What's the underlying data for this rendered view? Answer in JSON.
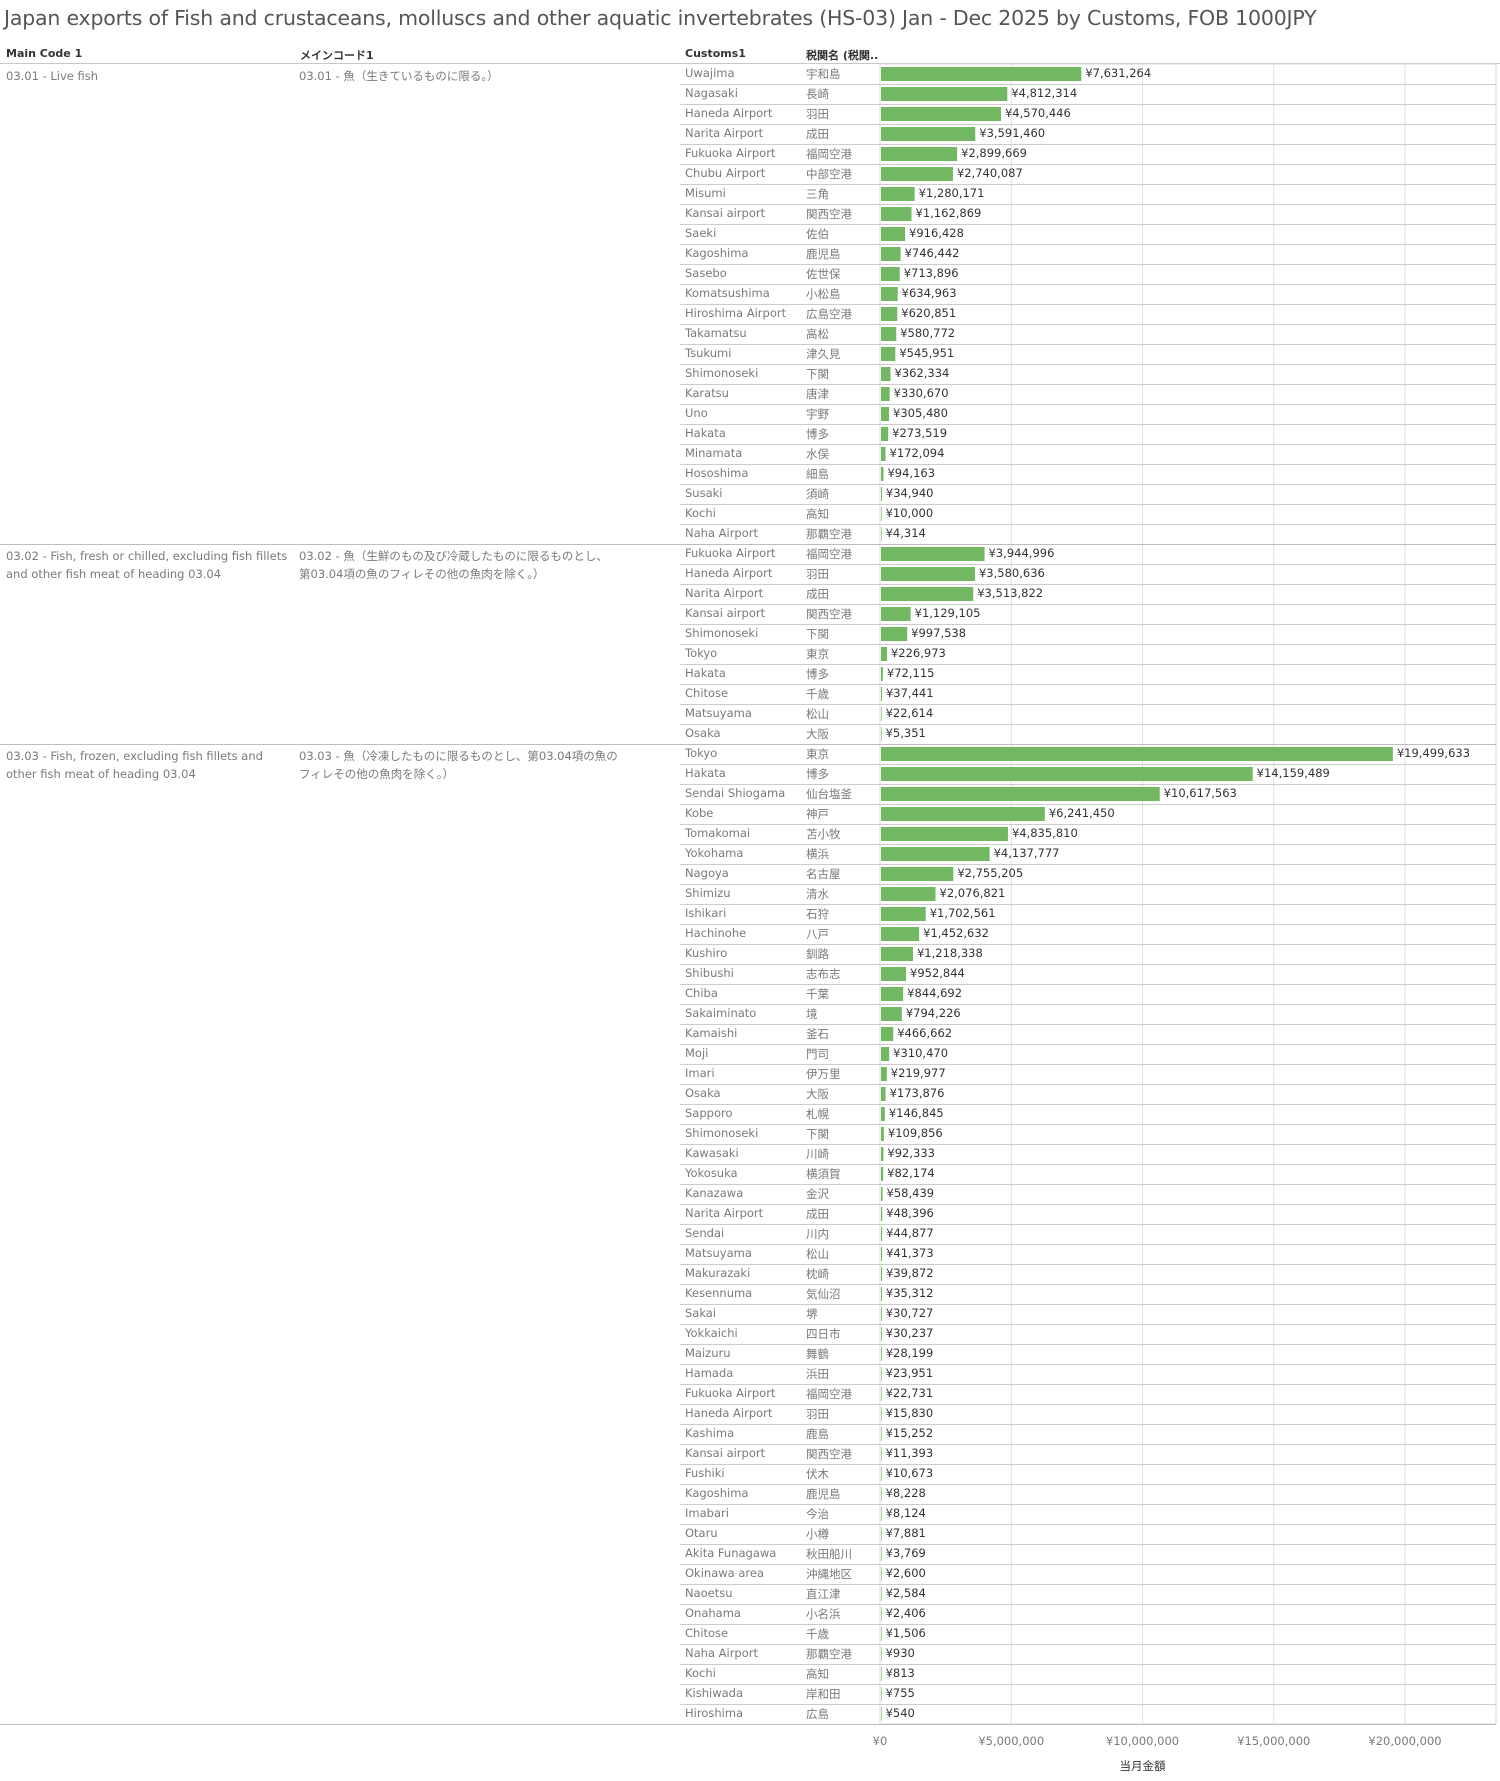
{
  "title": "Japan exports of Fish and crustaceans, molluscs and other aquatic invertebrates (HS-03) Jan - Dec 2025 by Customs, FOB 1000JPY",
  "headers": {
    "main_code": "Main Code 1",
    "main_code_jp": "メインコード1",
    "customs": "Customs1",
    "customs_jp": "税関名 (税関.."
  },
  "colors": {
    "bar": "#72b862",
    "grid": "#e2e2e2",
    "separator": "#cccccc"
  },
  "chart_data": {
    "type": "bar",
    "orientation": "horizontal",
    "xlabel": "当月金額",
    "xlim": [
      0,
      20000000
    ],
    "ticks": [
      0,
      5000000,
      10000000,
      15000000,
      20000000
    ],
    "tick_labels": [
      "¥0",
      "¥5,000,000",
      "¥10,000,000",
      "¥15,000,000",
      "¥20,000,000"
    ],
    "grid": true,
    "groups": [
      {
        "code": "03.01 - Live fish",
        "code_jp": "03.01 - 魚（生きているものに限る。）",
        "rows": [
          {
            "en": "Uwajima",
            "jp": "宇和島",
            "value": 7631264,
            "label": "¥7,631,264"
          },
          {
            "en": "Nagasaki",
            "jp": "長崎",
            "value": 4812314,
            "label": "¥4,812,314"
          },
          {
            "en": "Haneda Airport",
            "jp": "羽田",
            "value": 4570446,
            "label": "¥4,570,446"
          },
          {
            "en": "Narita Airport",
            "jp": "成田",
            "value": 3591460,
            "label": "¥3,591,460"
          },
          {
            "en": "Fukuoka Airport",
            "jp": "福岡空港",
            "value": 2899669,
            "label": "¥2,899,669"
          },
          {
            "en": "Chubu Airport",
            "jp": "中部空港",
            "value": 2740087,
            "label": "¥2,740,087"
          },
          {
            "en": "Misumi",
            "jp": "三角",
            "value": 1280171,
            "label": "¥1,280,171"
          },
          {
            "en": "Kansai airport",
            "jp": "関西空港",
            "value": 1162869,
            "label": "¥1,162,869"
          },
          {
            "en": "Saeki",
            "jp": "佐伯",
            "value": 916428,
            "label": "¥916,428"
          },
          {
            "en": "Kagoshima",
            "jp": "鹿児島",
            "value": 746442,
            "label": "¥746,442"
          },
          {
            "en": "Sasebo",
            "jp": "佐世保",
            "value": 713896,
            "label": "¥713,896"
          },
          {
            "en": "Komatsushima",
            "jp": "小松島",
            "value": 634963,
            "label": "¥634,963"
          },
          {
            "en": "Hiroshima Airport",
            "jp": "広島空港",
            "value": 620851,
            "label": "¥620,851"
          },
          {
            "en": "Takamatsu",
            "jp": "高松",
            "value": 580772,
            "label": "¥580,772"
          },
          {
            "en": "Tsukumi",
            "jp": "津久見",
            "value": 545951,
            "label": "¥545,951"
          },
          {
            "en": "Shimonoseki",
            "jp": "下関",
            "value": 362334,
            "label": "¥362,334"
          },
          {
            "en": "Karatsu",
            "jp": "唐津",
            "value": 330670,
            "label": "¥330,670"
          },
          {
            "en": "Uno",
            "jp": "宇野",
            "value": 305480,
            "label": "¥305,480"
          },
          {
            "en": "Hakata",
            "jp": "博多",
            "value": 273519,
            "label": "¥273,519"
          },
          {
            "en": "Minamata",
            "jp": "水俣",
            "value": 172094,
            "label": "¥172,094"
          },
          {
            "en": "Hososhima",
            "jp": "細島",
            "value": 94163,
            "label": "¥94,163"
          },
          {
            "en": "Susaki",
            "jp": "須崎",
            "value": 34940,
            "label": "¥34,940"
          },
          {
            "en": "Kochi",
            "jp": "高知",
            "value": 10000,
            "label": "¥10,000"
          },
          {
            "en": "Naha Airport",
            "jp": "那覇空港",
            "value": 4314,
            "label": "¥4,314"
          }
        ]
      },
      {
        "code": "03.02 - Fish, fresh or chilled, excluding fish fillets and other fish meat of heading 03.04",
        "code_jp": "03.02 - 魚（生鮮のもの及び冷蔵したものに限るものとし、第03.04項の魚のフィレその他の魚肉を除く。）",
        "rows": [
          {
            "en": "Fukuoka Airport",
            "jp": "福岡空港",
            "value": 3944996,
            "label": "¥3,944,996"
          },
          {
            "en": "Haneda Airport",
            "jp": "羽田",
            "value": 3580636,
            "label": "¥3,580,636"
          },
          {
            "en": "Narita Airport",
            "jp": "成田",
            "value": 3513822,
            "label": "¥3,513,822"
          },
          {
            "en": "Kansai airport",
            "jp": "関西空港",
            "value": 1129105,
            "label": "¥1,129,105"
          },
          {
            "en": "Shimonoseki",
            "jp": "下関",
            "value": 997538,
            "label": "¥997,538"
          },
          {
            "en": "Tokyo",
            "jp": "東京",
            "value": 226973,
            "label": "¥226,973"
          },
          {
            "en": "Hakata",
            "jp": "博多",
            "value": 72115,
            "label": "¥72,115"
          },
          {
            "en": "Chitose",
            "jp": "千歳",
            "value": 37441,
            "label": "¥37,441"
          },
          {
            "en": "Matsuyama",
            "jp": "松山",
            "value": 22614,
            "label": "¥22,614"
          },
          {
            "en": "Osaka",
            "jp": "大阪",
            "value": 5351,
            "label": "¥5,351"
          }
        ]
      },
      {
        "code": "03.03 - Fish, frozen, excluding fish fillets and other fish meat of heading 03.04",
        "code_jp": "03.03 - 魚（冷凍したものに限るものとし、第03.04項の魚のフィレその他の魚肉を除く。）",
        "rows": [
          {
            "en": "Tokyo",
            "jp": "東京",
            "value": 19499633,
            "label": "¥19,499,633"
          },
          {
            "en": "Hakata",
            "jp": "博多",
            "value": 14159489,
            "label": "¥14,159,489"
          },
          {
            "en": "Sendai Shiogama",
            "jp": "仙台塩釜",
            "value": 10617563,
            "label": "¥10,617,563"
          },
          {
            "en": "Kobe",
            "jp": "神戸",
            "value": 6241450,
            "label": "¥6,241,450"
          },
          {
            "en": "Tomakomai",
            "jp": "苫小牧",
            "value": 4835810,
            "label": "¥4,835,810"
          },
          {
            "en": "Yokohama",
            "jp": "横浜",
            "value": 4137777,
            "label": "¥4,137,777"
          },
          {
            "en": "Nagoya",
            "jp": "名古屋",
            "value": 2755205,
            "label": "¥2,755,205"
          },
          {
            "en": "Shimizu",
            "jp": "清水",
            "value": 2076821,
            "label": "¥2,076,821"
          },
          {
            "en": "Ishikari",
            "jp": "石狩",
            "value": 1702561,
            "label": "¥1,702,561"
          },
          {
            "en": "Hachinohe",
            "jp": "八戸",
            "value": 1452632,
            "label": "¥1,452,632"
          },
          {
            "en": "Kushiro",
            "jp": "釧路",
            "value": 1218338,
            "label": "¥1,218,338"
          },
          {
            "en": "Shibushi",
            "jp": "志布志",
            "value": 952844,
            "label": "¥952,844"
          },
          {
            "en": "Chiba",
            "jp": "千葉",
            "value": 844692,
            "label": "¥844,692"
          },
          {
            "en": "Sakaiminato",
            "jp": "境",
            "value": 794226,
            "label": "¥794,226"
          },
          {
            "en": "Kamaishi",
            "jp": "釜石",
            "value": 466662,
            "label": "¥466,662"
          },
          {
            "en": "Moji",
            "jp": "門司",
            "value": 310470,
            "label": "¥310,470"
          },
          {
            "en": "Imari",
            "jp": "伊万里",
            "value": 219977,
            "label": "¥219,977"
          },
          {
            "en": "Osaka",
            "jp": "大阪",
            "value": 173876,
            "label": "¥173,876"
          },
          {
            "en": "Sapporo",
            "jp": "札幌",
            "value": 146845,
            "label": "¥146,845"
          },
          {
            "en": "Shimonoseki",
            "jp": "下関",
            "value": 109856,
            "label": "¥109,856"
          },
          {
            "en": "Kawasaki",
            "jp": "川崎",
            "value": 92333,
            "label": "¥92,333"
          },
          {
            "en": "Yokosuka",
            "jp": "横須賀",
            "value": 82174,
            "label": "¥82,174"
          },
          {
            "en": "Kanazawa",
            "jp": "金沢",
            "value": 58439,
            "label": "¥58,439"
          },
          {
            "en": "Narita Airport",
            "jp": "成田",
            "value": 48396,
            "label": "¥48,396"
          },
          {
            "en": "Sendai",
            "jp": "川内",
            "value": 44877,
            "label": "¥44,877"
          },
          {
            "en": "Matsuyama",
            "jp": "松山",
            "value": 41373,
            "label": "¥41,373"
          },
          {
            "en": "Makurazaki",
            "jp": "枕崎",
            "value": 39872,
            "label": "¥39,872"
          },
          {
            "en": "Kesennuma",
            "jp": "気仙沼",
            "value": 35312,
            "label": "¥35,312"
          },
          {
            "en": "Sakai",
            "jp": "堺",
            "value": 30727,
            "label": "¥30,727"
          },
          {
            "en": "Yokkaichi",
            "jp": "四日市",
            "value": 30237,
            "label": "¥30,237"
          },
          {
            "en": "Maizuru",
            "jp": "舞鶴",
            "value": 28199,
            "label": "¥28,199"
          },
          {
            "en": "Hamada",
            "jp": "浜田",
            "value": 23951,
            "label": "¥23,951"
          },
          {
            "en": "Fukuoka Airport",
            "jp": "福岡空港",
            "value": 22731,
            "label": "¥22,731"
          },
          {
            "en": "Haneda Airport",
            "jp": "羽田",
            "value": 15830,
            "label": "¥15,830"
          },
          {
            "en": "Kashima",
            "jp": "鹿島",
            "value": 15252,
            "label": "¥15,252"
          },
          {
            "en": "Kansai airport",
            "jp": "関西空港",
            "value": 11393,
            "label": "¥11,393"
          },
          {
            "en": "Fushiki",
            "jp": "伏木",
            "value": 10673,
            "label": "¥10,673"
          },
          {
            "en": "Kagoshima",
            "jp": "鹿児島",
            "value": 8228,
            "label": "¥8,228"
          },
          {
            "en": "Imabari",
            "jp": "今治",
            "value": 8124,
            "label": "¥8,124"
          },
          {
            "en": "Otaru",
            "jp": "小樽",
            "value": 7881,
            "label": "¥7,881"
          },
          {
            "en": "Akita Funagawa",
            "jp": "秋田船川",
            "value": 3769,
            "label": "¥3,769"
          },
          {
            "en": "Okinawa area",
            "jp": "沖縄地区",
            "value": 2600,
            "label": "¥2,600"
          },
          {
            "en": "Naoetsu",
            "jp": "直江津",
            "value": 2584,
            "label": "¥2,584"
          },
          {
            "en": "Onahama",
            "jp": "小名浜",
            "value": 2406,
            "label": "¥2,406"
          },
          {
            "en": "Chitose",
            "jp": "千歳",
            "value": 1506,
            "label": "¥1,506"
          },
          {
            "en": "Naha Airport",
            "jp": "那覇空港",
            "value": 930,
            "label": "¥930"
          },
          {
            "en": "Kochi",
            "jp": "高知",
            "value": 813,
            "label": "¥813"
          },
          {
            "en": "Kishiwada",
            "jp": "岸和田",
            "value": 755,
            "label": "¥755"
          },
          {
            "en": "Hiroshima",
            "jp": "広島",
            "value": 540,
            "label": "¥540"
          }
        ]
      }
    ]
  }
}
